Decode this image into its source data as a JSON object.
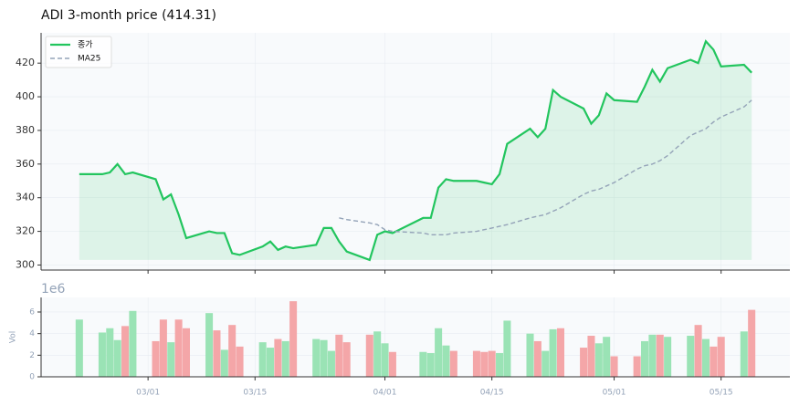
{
  "chart_data": [
    {
      "type": "line",
      "title": "ADI  3-month price (414.31)",
      "x": [
        "02/20",
        "02/23",
        "02/24",
        "02/25",
        "02/26",
        "02/27",
        "03/02",
        "03/03",
        "03/04",
        "03/05",
        "03/06",
        "03/09",
        "03/10",
        "03/11",
        "03/12",
        "03/13",
        "03/16",
        "03/17",
        "03/18",
        "03/19",
        "03/20",
        "03/23",
        "03/24",
        "03/25",
        "03/26",
        "03/27",
        "03/30",
        "03/31",
        "04/01",
        "04/02",
        "04/06",
        "04/07",
        "04/08",
        "04/09",
        "04/10",
        "04/13",
        "04/14",
        "04/15",
        "04/16",
        "04/17",
        "04/20",
        "04/21",
        "04/22",
        "04/23",
        "04/24",
        "04/27",
        "04/28",
        "04/29",
        "04/30",
        "05/01",
        "05/04",
        "05/05",
        "05/06",
        "05/07",
        "05/08",
        "05/11",
        "05/12",
        "05/13",
        "05/14",
        "05/15",
        "05/18",
        "05/19"
      ],
      "series": [
        {
          "name": "종가",
          "color": "#22c55e",
          "fill": true,
          "values": [
            354,
            354,
            355,
            360,
            354,
            355,
            351,
            339,
            342,
            330,
            316,
            320,
            319,
            319,
            307,
            306,
            311,
            314,
            309,
            311,
            310,
            312,
            322,
            322,
            314,
            308,
            303,
            318,
            320,
            319,
            328,
            328,
            346,
            351,
            350,
            350,
            349,
            348,
            354,
            372,
            381,
            376,
            381,
            404,
            400,
            393,
            384,
            389,
            402,
            398,
            397,
            406,
            416,
            409,
            417,
            422,
            420,
            433,
            428,
            418,
            419,
            414.31
          ]
        },
        {
          "name": "MA25",
          "color": "#94a3b8",
          "dashed": true,
          "values": [
            null,
            null,
            null,
            null,
            null,
            null,
            null,
            null,
            null,
            null,
            null,
            null,
            null,
            null,
            null,
            null,
            null,
            null,
            null,
            null,
            null,
            null,
            null,
            null,
            328,
            327,
            325,
            324,
            321,
            320,
            319,
            318,
            318,
            318,
            319,
            320,
            321,
            322,
            323,
            324,
            328,
            329,
            330,
            332,
            334,
            342,
            344,
            345,
            347,
            349,
            357,
            359,
            360,
            362,
            365,
            377,
            379,
            381,
            385,
            388,
            394,
            398
          ]
        }
      ],
      "xlim": [
        "02/15",
        "05/24"
      ],
      "ylim": [
        297,
        438
      ],
      "yticks": [
        300,
        320,
        340,
        360,
        380,
        400,
        420
      ],
      "grid": true,
      "legend": "upper left"
    },
    {
      "type": "bar",
      "ylabel": "Vol",
      "offset_label": "1e6",
      "x": [
        "02/20",
        "02/23",
        "02/24",
        "02/25",
        "02/26",
        "02/27",
        "03/02",
        "03/03",
        "03/04",
        "03/05",
        "03/06",
        "03/09",
        "03/10",
        "03/11",
        "03/12",
        "03/13",
        "03/16",
        "03/17",
        "03/18",
        "03/19",
        "03/20",
        "03/23",
        "03/24",
        "03/25",
        "03/26",
        "03/27",
        "03/30",
        "03/31",
        "04/01",
        "04/02",
        "04/06",
        "04/07",
        "04/08",
        "04/09",
        "04/10",
        "04/13",
        "04/14",
        "04/15",
        "04/16",
        "04/17",
        "04/20",
        "04/21",
        "04/22",
        "04/23",
        "04/24",
        "04/27",
        "04/28",
        "04/29",
        "04/30",
        "05/01",
        "05/04",
        "05/05",
        "05/06",
        "05/07",
        "05/08",
        "05/11",
        "05/12",
        "05/13",
        "05/14",
        "05/15",
        "05/18",
        "05/19"
      ],
      "values": [
        5.3,
        4.1,
        4.5,
        3.4,
        4.7,
        6.1,
        3.3,
        5.3,
        3.2,
        5.3,
        4.5,
        5.9,
        4.3,
        2.5,
        4.8,
        2.8,
        3.2,
        2.7,
        3.5,
        3.3,
        7.0,
        3.5,
        3.4,
        2.4,
        3.9,
        3.2,
        3.9,
        4.2,
        3.1,
        2.3,
        2.3,
        2.2,
        4.5,
        2.9,
        2.4,
        2.4,
        2.3,
        2.4,
        2.2,
        5.2,
        4.0,
        3.3,
        2.4,
        4.4,
        4.5,
        2.7,
        3.8,
        3.1,
        3.7,
        1.9,
        1.9,
        3.3,
        3.9,
        3.9,
        3.7,
        3.8,
        4.8,
        3.5,
        2.8,
        3.7,
        4.2,
        6.2
      ],
      "colors": [
        "#9ae3b5",
        "#9ae3b5",
        "#9ae3b5",
        "#9ae3b5",
        "#f4a6a8",
        "#9ae3b5",
        "#f4a6a8",
        "#f4a6a8",
        "#9ae3b5",
        "#f4a6a8",
        "#f4a6a8",
        "#9ae3b5",
        "#f4a6a8",
        "#9ae3b5",
        "#f4a6a8",
        "#f4a6a8",
        "#9ae3b5",
        "#9ae3b5",
        "#f4a6a8",
        "#9ae3b5",
        "#f4a6a8",
        "#9ae3b5",
        "#9ae3b5",
        "#9ae3b5",
        "#f4a6a8",
        "#f4a6a8",
        "#f4a6a8",
        "#9ae3b5",
        "#9ae3b5",
        "#f4a6a8",
        "#9ae3b5",
        "#9ae3b5",
        "#9ae3b5",
        "#9ae3b5",
        "#f4a6a8",
        "#f4a6a8",
        "#f4a6a8",
        "#f4a6a8",
        "#9ae3b5",
        "#9ae3b5",
        "#9ae3b5",
        "#f4a6a8",
        "#9ae3b5",
        "#9ae3b5",
        "#f4a6a8",
        "#f4a6a8",
        "#f4a6a8",
        "#9ae3b5",
        "#9ae3b5",
        "#f4a6a8",
        "#f4a6a8",
        "#9ae3b5",
        "#9ae3b5",
        "#f4a6a8",
        "#9ae3b5",
        "#9ae3b5",
        "#f4a6a8",
        "#9ae3b5",
        "#f4a6a8",
        "#f4a6a8",
        "#9ae3b5",
        "#f4a6a8"
      ],
      "xlim": [
        "02/15",
        "05/24"
      ],
      "xticks": [
        "03/01",
        "03/15",
        "04/01",
        "04/15",
        "05/01",
        "05/15"
      ],
      "ylim": [
        0,
        7.35
      ],
      "yticks": [
        0,
        2,
        4,
        6
      ],
      "grid": true
    }
  ]
}
